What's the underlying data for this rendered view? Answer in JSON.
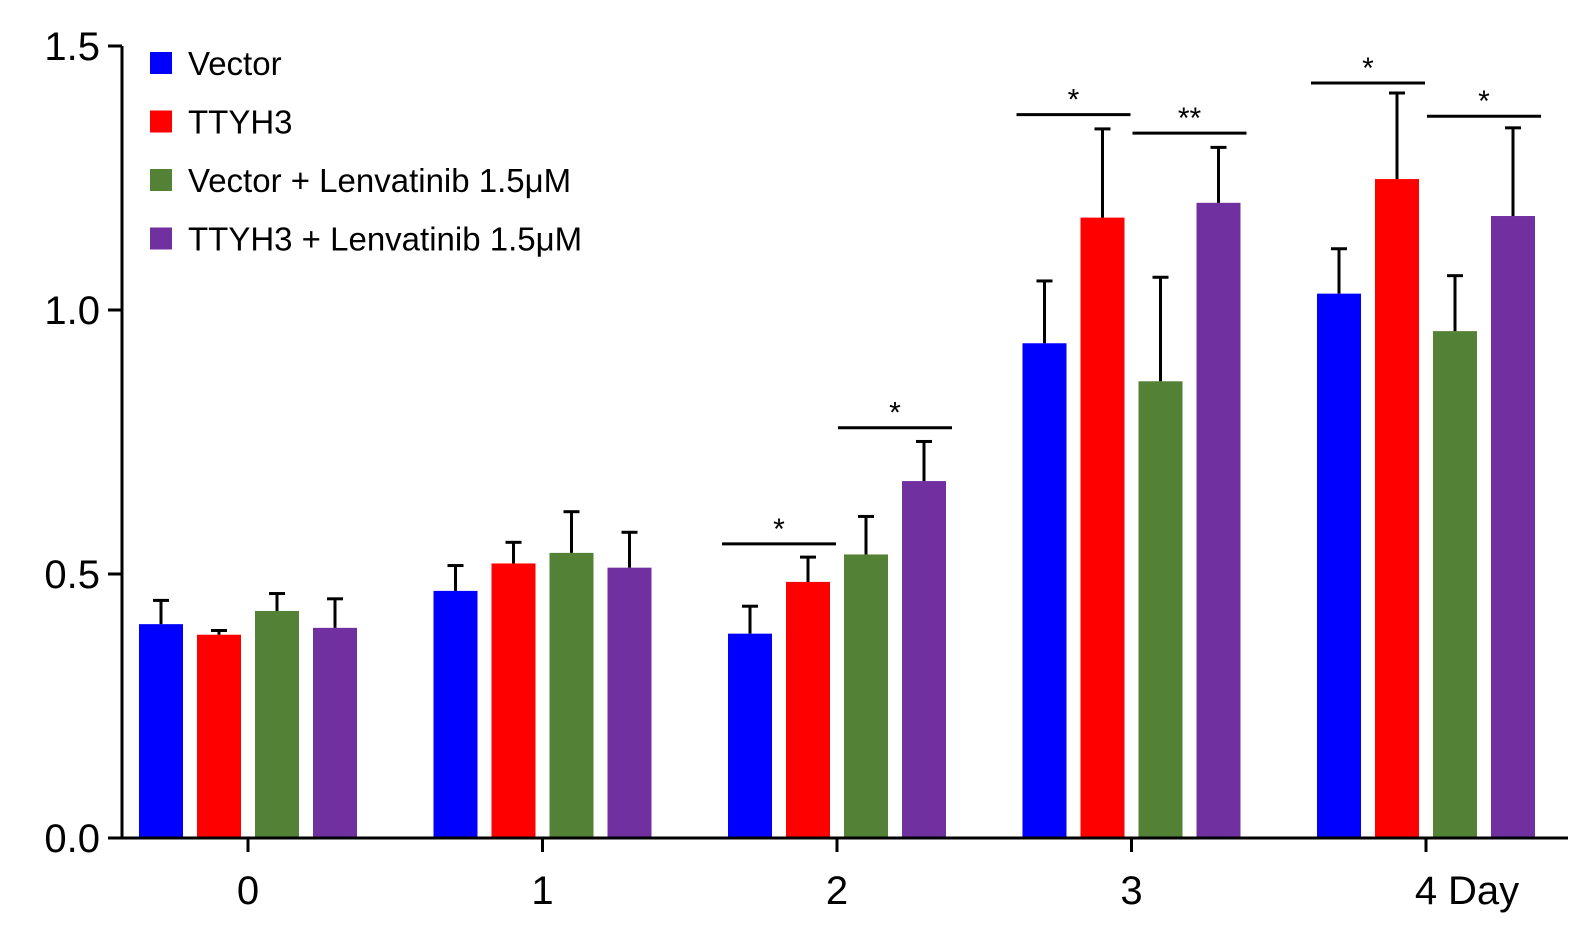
{
  "chart_data": {
    "type": "bar",
    "categories": [
      "0",
      "1",
      "2",
      "3",
      "4"
    ],
    "xlabel": "Day",
    "ylabel": "",
    "ylim": [
      0,
      1.5
    ],
    "yticks": [
      0.0,
      0.5,
      1.0,
      1.5
    ],
    "ytick_labels": [
      "0.0",
      "0.5",
      "1.0",
      "1.5"
    ],
    "legend_position": "top-left",
    "grid": false,
    "series": [
      {
        "name": "Vector",
        "color": "#0000ff",
        "values": [
          0.405,
          0.468,
          0.387,
          0.937,
          1.031
        ],
        "errors": [
          0.045,
          0.048,
          0.052,
          0.118,
          0.085
        ]
      },
      {
        "name": "TTYH3",
        "color": "#ff0000",
        "values": [
          0.385,
          0.52,
          0.485,
          1.175,
          1.248
        ],
        "errors": [
          0.008,
          0.04,
          0.047,
          0.168,
          0.163
        ]
      },
      {
        "name": "Vector + Lenvatinib 1.5μM",
        "color": "#538135",
        "values": [
          0.43,
          0.54,
          0.537,
          0.865,
          0.96
        ],
        "errors": [
          0.033,
          0.078,
          0.072,
          0.197,
          0.105
        ]
      },
      {
        "name": "TTYH3 + Lenvatinib 1.5μM",
        "color": "#7030a0",
        "values": [
          0.398,
          0.512,
          0.676,
          1.203,
          1.178
        ],
        "errors": [
          0.055,
          0.067,
          0.075,
          0.105,
          0.167
        ]
      }
    ],
    "annotations": [
      {
        "category": 2,
        "between": [
          0,
          1
        ],
        "label": "*",
        "level": 0.557
      },
      {
        "category": 2,
        "between": [
          2,
          3
        ],
        "label": "*",
        "level": 0.777
      },
      {
        "category": 3,
        "between": [
          0,
          1
        ],
        "label": "*",
        "level": 1.37
      },
      {
        "category": 3,
        "between": [
          2,
          3
        ],
        "label": "**",
        "level": 1.335
      },
      {
        "category": 4,
        "between": [
          0,
          1
        ],
        "label": "*",
        "level": 1.43
      },
      {
        "category": 4,
        "between": [
          2,
          3
        ],
        "label": "*",
        "level": 1.367
      }
    ]
  }
}
